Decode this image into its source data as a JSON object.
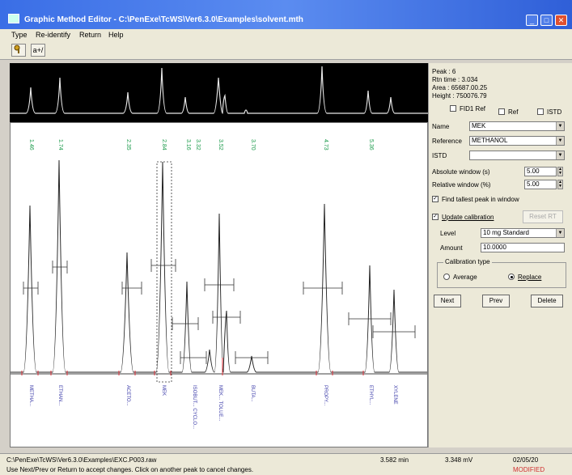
{
  "window": {
    "title": "Graphic Method Editor - C:\\PenExe\\TcWS\\Ver6.3.0\\Examples\\solvent.mth"
  },
  "menu": [
    "Type",
    "Re-identify",
    "Return",
    "Help"
  ],
  "toolbar": {
    "btn1_icon": "key-icon",
    "btn2_label": "a+/"
  },
  "peak_info": {
    "peak": "Peak      :  6",
    "retention": "Rtn time  :  3.034",
    "area": "Area      :  65687.00.25",
    "height": "Height    :  750076.79"
  },
  "panel": {
    "fid_ref": "FID1 Ref",
    "ref": "Ref",
    "istd": "ISTD",
    "name_label": "Name",
    "name_value": "MEK",
    "reference_label": "Reference",
    "reference_value": "METHANOL",
    "istd_label": "ISTD",
    "istd_value": "",
    "abs_window_label": "Absolute window (s)",
    "abs_window_value": "5.00",
    "rel_window_label": "Relative window (%)",
    "rel_window_value": "5.00",
    "find_tallest": "Find tallest peak in window",
    "update_cal": "Update calibration",
    "level_label": "Level",
    "level_value": "10 mg Standard",
    "amount_label": "Amount",
    "amount_value": "10.0000",
    "cal_type_label": "Calibration type",
    "average": "Average",
    "replace": "Replace",
    "next": "Next",
    "prev": "Prev",
    "delete": "Delete",
    "reset": "Reset RT"
  },
  "peaks": {
    "top_labels": [
      "1.46",
      "1.74",
      "2.35",
      "2.84",
      "3.16",
      "3.32",
      "3.52",
      "3.70",
      "4.73",
      "5.36"
    ],
    "bottom_labels": [
      "METHA...",
      "ETHAN...",
      "ACETO...",
      "MEK",
      "ISOBUT... CYCLO...",
      "MEK... TOLUE...",
      "BUTA...",
      "PROPY...",
      "ETHYL...",
      "XYLENE"
    ]
  },
  "status": {
    "path": "C:\\PenExe\\TcWS\\Ver6.3.0\\Examples\\EXC.P003.raw",
    "val1": "3.582 min",
    "val2": "3.348 mV",
    "val3": "02/05/20",
    "hint": "Use Next/Prev or Return to accept changes. Click on another peak to cancel changes.",
    "modified": "MODIFIED"
  },
  "colors": {
    "accent": "#2f5fd8",
    "peak_label": "#1a9a4a",
    "baseline": "#e0303a",
    "name_label": "#3a3aa8",
    "modified": "#d03030"
  }
}
